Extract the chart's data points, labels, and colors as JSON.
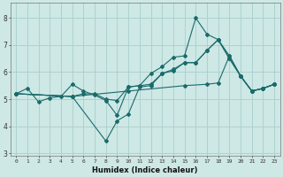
{
  "xlabel": "Humidex (Indice chaleur)",
  "background_color": "#cde8e5",
  "grid_color": "#a8cece",
  "line_color": "#1a6b6b",
  "markersize": 2.0,
  "linewidth": 0.8,
  "xlim": [
    -0.5,
    23.5
  ],
  "ylim": [
    2.9,
    8.55
  ],
  "yticks": [
    3,
    4,
    5,
    6,
    7,
    8
  ],
  "xticks": [
    0,
    1,
    2,
    3,
    4,
    5,
    6,
    7,
    8,
    9,
    10,
    11,
    12,
    13,
    14,
    15,
    16,
    17,
    18,
    19,
    20,
    21,
    22,
    23
  ],
  "series1": [
    [
      0,
      5.2
    ],
    [
      1,
      5.4
    ],
    [
      2,
      4.9
    ],
    [
      3,
      5.05
    ],
    [
      4,
      5.1
    ],
    [
      5,
      5.55
    ],
    [
      6,
      5.3
    ],
    [
      7,
      5.15
    ],
    [
      8,
      4.95
    ],
    [
      9,
      4.4
    ],
    [
      10,
      5.45
    ],
    [
      11,
      5.5
    ],
    [
      12,
      5.95
    ],
    [
      13,
      6.2
    ],
    [
      14,
      6.55
    ],
    [
      15,
      6.6
    ],
    [
      16,
      8.0
    ],
    [
      17,
      7.4
    ],
    [
      18,
      7.2
    ],
    [
      19,
      6.6
    ],
    [
      20,
      5.85
    ],
    [
      21,
      5.3
    ],
    [
      22,
      5.4
    ],
    [
      23,
      5.55
    ]
  ],
  "series2": [
    [
      0,
      5.2
    ],
    [
      5,
      5.1
    ],
    [
      8,
      3.45
    ],
    [
      9,
      4.2
    ],
    [
      10,
      4.45
    ],
    [
      11,
      5.45
    ],
    [
      12,
      5.5
    ],
    [
      13,
      5.95
    ],
    [
      14,
      6.05
    ],
    [
      15,
      6.35
    ],
    [
      16,
      6.35
    ],
    [
      17,
      6.8
    ],
    [
      18,
      7.2
    ],
    [
      19,
      6.5
    ],
    [
      20,
      5.85
    ],
    [
      21,
      5.3
    ],
    [
      22,
      5.4
    ],
    [
      23,
      5.55
    ]
  ],
  "series3": [
    [
      0,
      5.2
    ],
    [
      5,
      5.1
    ],
    [
      6,
      5.2
    ],
    [
      7,
      5.2
    ],
    [
      8,
      5.0
    ],
    [
      9,
      4.95
    ],
    [
      10,
      5.45
    ],
    [
      11,
      5.5
    ],
    [
      12,
      5.55
    ],
    [
      13,
      5.95
    ],
    [
      14,
      6.1
    ],
    [
      15,
      6.35
    ],
    [
      16,
      6.35
    ],
    [
      17,
      6.8
    ],
    [
      18,
      7.2
    ],
    [
      19,
      6.5
    ],
    [
      20,
      5.85
    ],
    [
      21,
      5.3
    ],
    [
      22,
      5.4
    ],
    [
      23,
      5.55
    ]
  ],
  "series4": [
    [
      0,
      5.2
    ],
    [
      5,
      5.1
    ],
    [
      10,
      5.3
    ],
    [
      15,
      5.5
    ],
    [
      17,
      5.55
    ],
    [
      18,
      5.6
    ],
    [
      19,
      6.6
    ],
    [
      20,
      5.85
    ],
    [
      21,
      5.3
    ],
    [
      22,
      5.4
    ],
    [
      23,
      5.55
    ]
  ]
}
